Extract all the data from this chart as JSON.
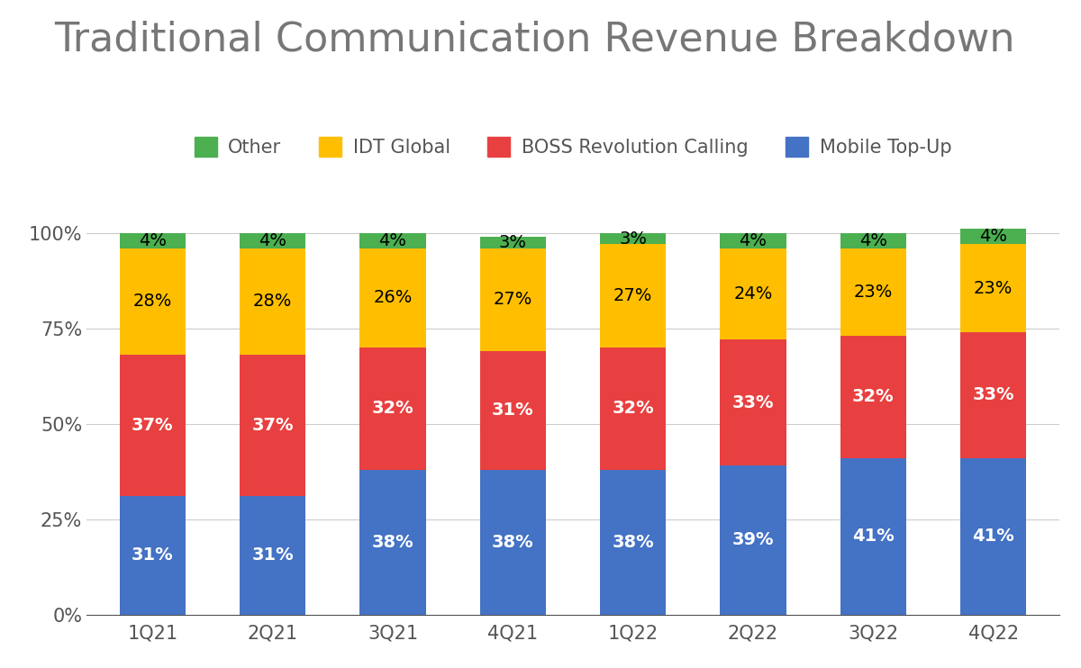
{
  "title": "Traditional Communication Revenue Breakdown",
  "categories": [
    "1Q21",
    "2Q21",
    "3Q21",
    "4Q21",
    "1Q22",
    "2Q22",
    "3Q22",
    "4Q22"
  ],
  "series": {
    "Mobile Top-Up": [
      31,
      31,
      38,
      38,
      38,
      39,
      41,
      41
    ],
    "BOSS Revolution Calling": [
      37,
      37,
      32,
      31,
      32,
      33,
      32,
      33
    ],
    "IDT Global": [
      28,
      28,
      26,
      27,
      27,
      24,
      23,
      23
    ],
    "Other": [
      4,
      4,
      4,
      3,
      3,
      4,
      4,
      4
    ]
  },
  "colors": {
    "Mobile Top-Up": "#4472C4",
    "BOSS Revolution Calling": "#E84040",
    "IDT Global": "#FFBF00",
    "Other": "#4CAF50"
  },
  "label_colors": {
    "Mobile Top-Up": "#FFFFFF",
    "BOSS Revolution Calling": "#FFFFFF",
    "IDT Global": "#000000",
    "Other": "#000000"
  },
  "legend_order": [
    "Other",
    "IDT Global",
    "BOSS Revolution Calling",
    "Mobile Top-Up"
  ],
  "yticks": [
    0,
    25,
    50,
    75,
    100
  ],
  "ytick_labels": [
    "0%",
    "25%",
    "50%",
    "75%",
    "100%"
  ],
  "title_fontsize": 32,
  "legend_fontsize": 15,
  "tick_fontsize": 15,
  "label_fontsize": 14,
  "background_color": "#FFFFFF",
  "grid_color": "#CCCCCC"
}
